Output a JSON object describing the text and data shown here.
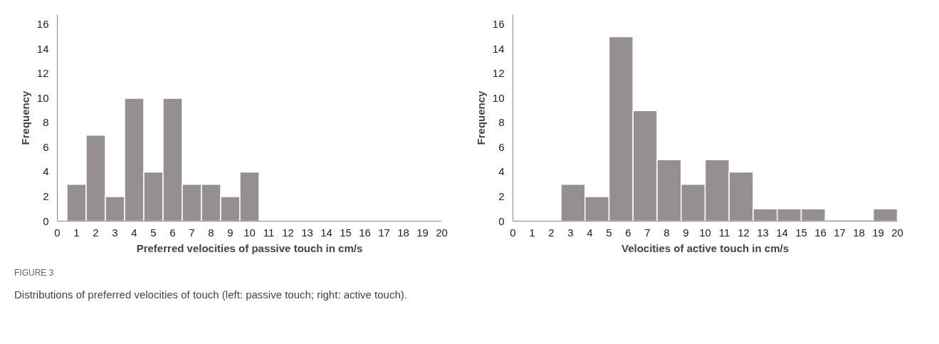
{
  "chart_data": [
    {
      "type": "histogram",
      "xlabel": "Preferred velocities of passive touch in cm/s",
      "ylabel": "Frequency",
      "bins": [
        0.5,
        1.5,
        2.5,
        3.5,
        4.5,
        5.5,
        6.5,
        7.5,
        8.5,
        9.5,
        10.5
      ],
      "values": [
        3,
        7,
        2,
        10,
        4,
        10,
        3,
        3,
        2,
        4
      ],
      "color": "#958f8f",
      "xlim": [
        0,
        20
      ],
      "xticks": [
        0,
        1,
        2,
        3,
        4,
        5,
        6,
        7,
        8,
        9,
        10,
        11,
        12,
        13,
        14,
        15,
        16,
        17,
        18,
        19,
        20
      ],
      "ylim": [
        0,
        16.8
      ],
      "yticks": [
        0,
        2,
        4,
        6,
        8,
        10,
        12,
        14,
        16
      ],
      "grid": false,
      "annotations": [
        "FIGURE 3",
        "Distributions of preferred velocities of touch (left: passive touch; right: active touch)."
      ]
    },
    {
      "type": "histogram",
      "xlabel": "Velocities of active touch in cm/s",
      "ylabel": "Frequency",
      "bins": [
        2.5,
        3.75,
        5,
        6.25,
        7.5,
        8.75,
        10,
        11.25,
        12.5,
        13.75,
        15,
        16.25,
        17.5,
        18.75,
        20
      ],
      "values": [
        3,
        2,
        15,
        9,
        5,
        3,
        5,
        4,
        1,
        1,
        1,
        0,
        0,
        1
      ],
      "color": "#958f8f",
      "xlim": [
        0,
        20
      ],
      "xticks": [
        0,
        1,
        2,
        3,
        4,
        5,
        6,
        7,
        8,
        9,
        10,
        11,
        12,
        13,
        14,
        15,
        16,
        17,
        18,
        19,
        20
      ],
      "ylim": [
        0,
        16.8
      ],
      "yticks": [
        0,
        2,
        4,
        6,
        8,
        10,
        12,
        14,
        16
      ],
      "grid": false
    }
  ]
}
